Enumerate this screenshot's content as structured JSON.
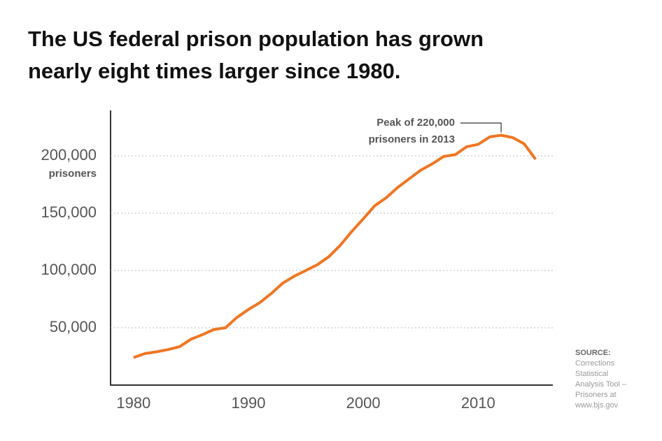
{
  "chart_data": {
    "type": "line",
    "title_lines": [
      "The US federal prison population has grown",
      "nearly eight times larger since 1980."
    ],
    "x": [
      1980,
      1981,
      1982,
      1983,
      1984,
      1985,
      1986,
      1987,
      1988,
      1989,
      1990,
      1991,
      1992,
      1993,
      1994,
      1995,
      1996,
      1997,
      1998,
      1999,
      2000,
      2001,
      2002,
      2003,
      2004,
      2005,
      2006,
      2007,
      2008,
      2009,
      2010,
      2011,
      2012,
      2013,
      2014,
      2015
    ],
    "series": [
      {
        "name": "Federal prison population",
        "color": "#ef7623",
        "values": [
          24000,
          27500,
          29000,
          31000,
          33500,
          40000,
          44000,
          48500,
          50000,
          59000,
          66000,
          72000,
          80000,
          89000,
          95000,
          100000,
          105000,
          112000,
          122000,
          134000,
          145000,
          156500,
          163500,
          172500,
          180000,
          187500,
          193000,
          199500,
          201000,
          208000,
          210000,
          216500,
          218000,
          216000,
          210500,
          197000
        ]
      }
    ],
    "xlim": [
      1978,
      2016.5
    ],
    "xticks": [
      1980,
      1990,
      2000,
      2010
    ],
    "ylim": [
      0,
      240000
    ],
    "yticks": [
      {
        "value": 50000,
        "label": "50,000"
      },
      {
        "value": 100000,
        "label": "100,000"
      },
      {
        "value": 150000,
        "label": "150,000"
      },
      {
        "value": 200000,
        "label": "200,000"
      }
    ],
    "y_unit": "prisoners",
    "grid": true,
    "annotation_lines": [
      "Peak of 220,000",
      "prisoners in 2013"
    ],
    "source_title": "SOURCE:",
    "source_lines": [
      "Corrections",
      "Statistical",
      "Analysis Tool –",
      "Prisoners at",
      "www.bjs.gov"
    ]
  }
}
